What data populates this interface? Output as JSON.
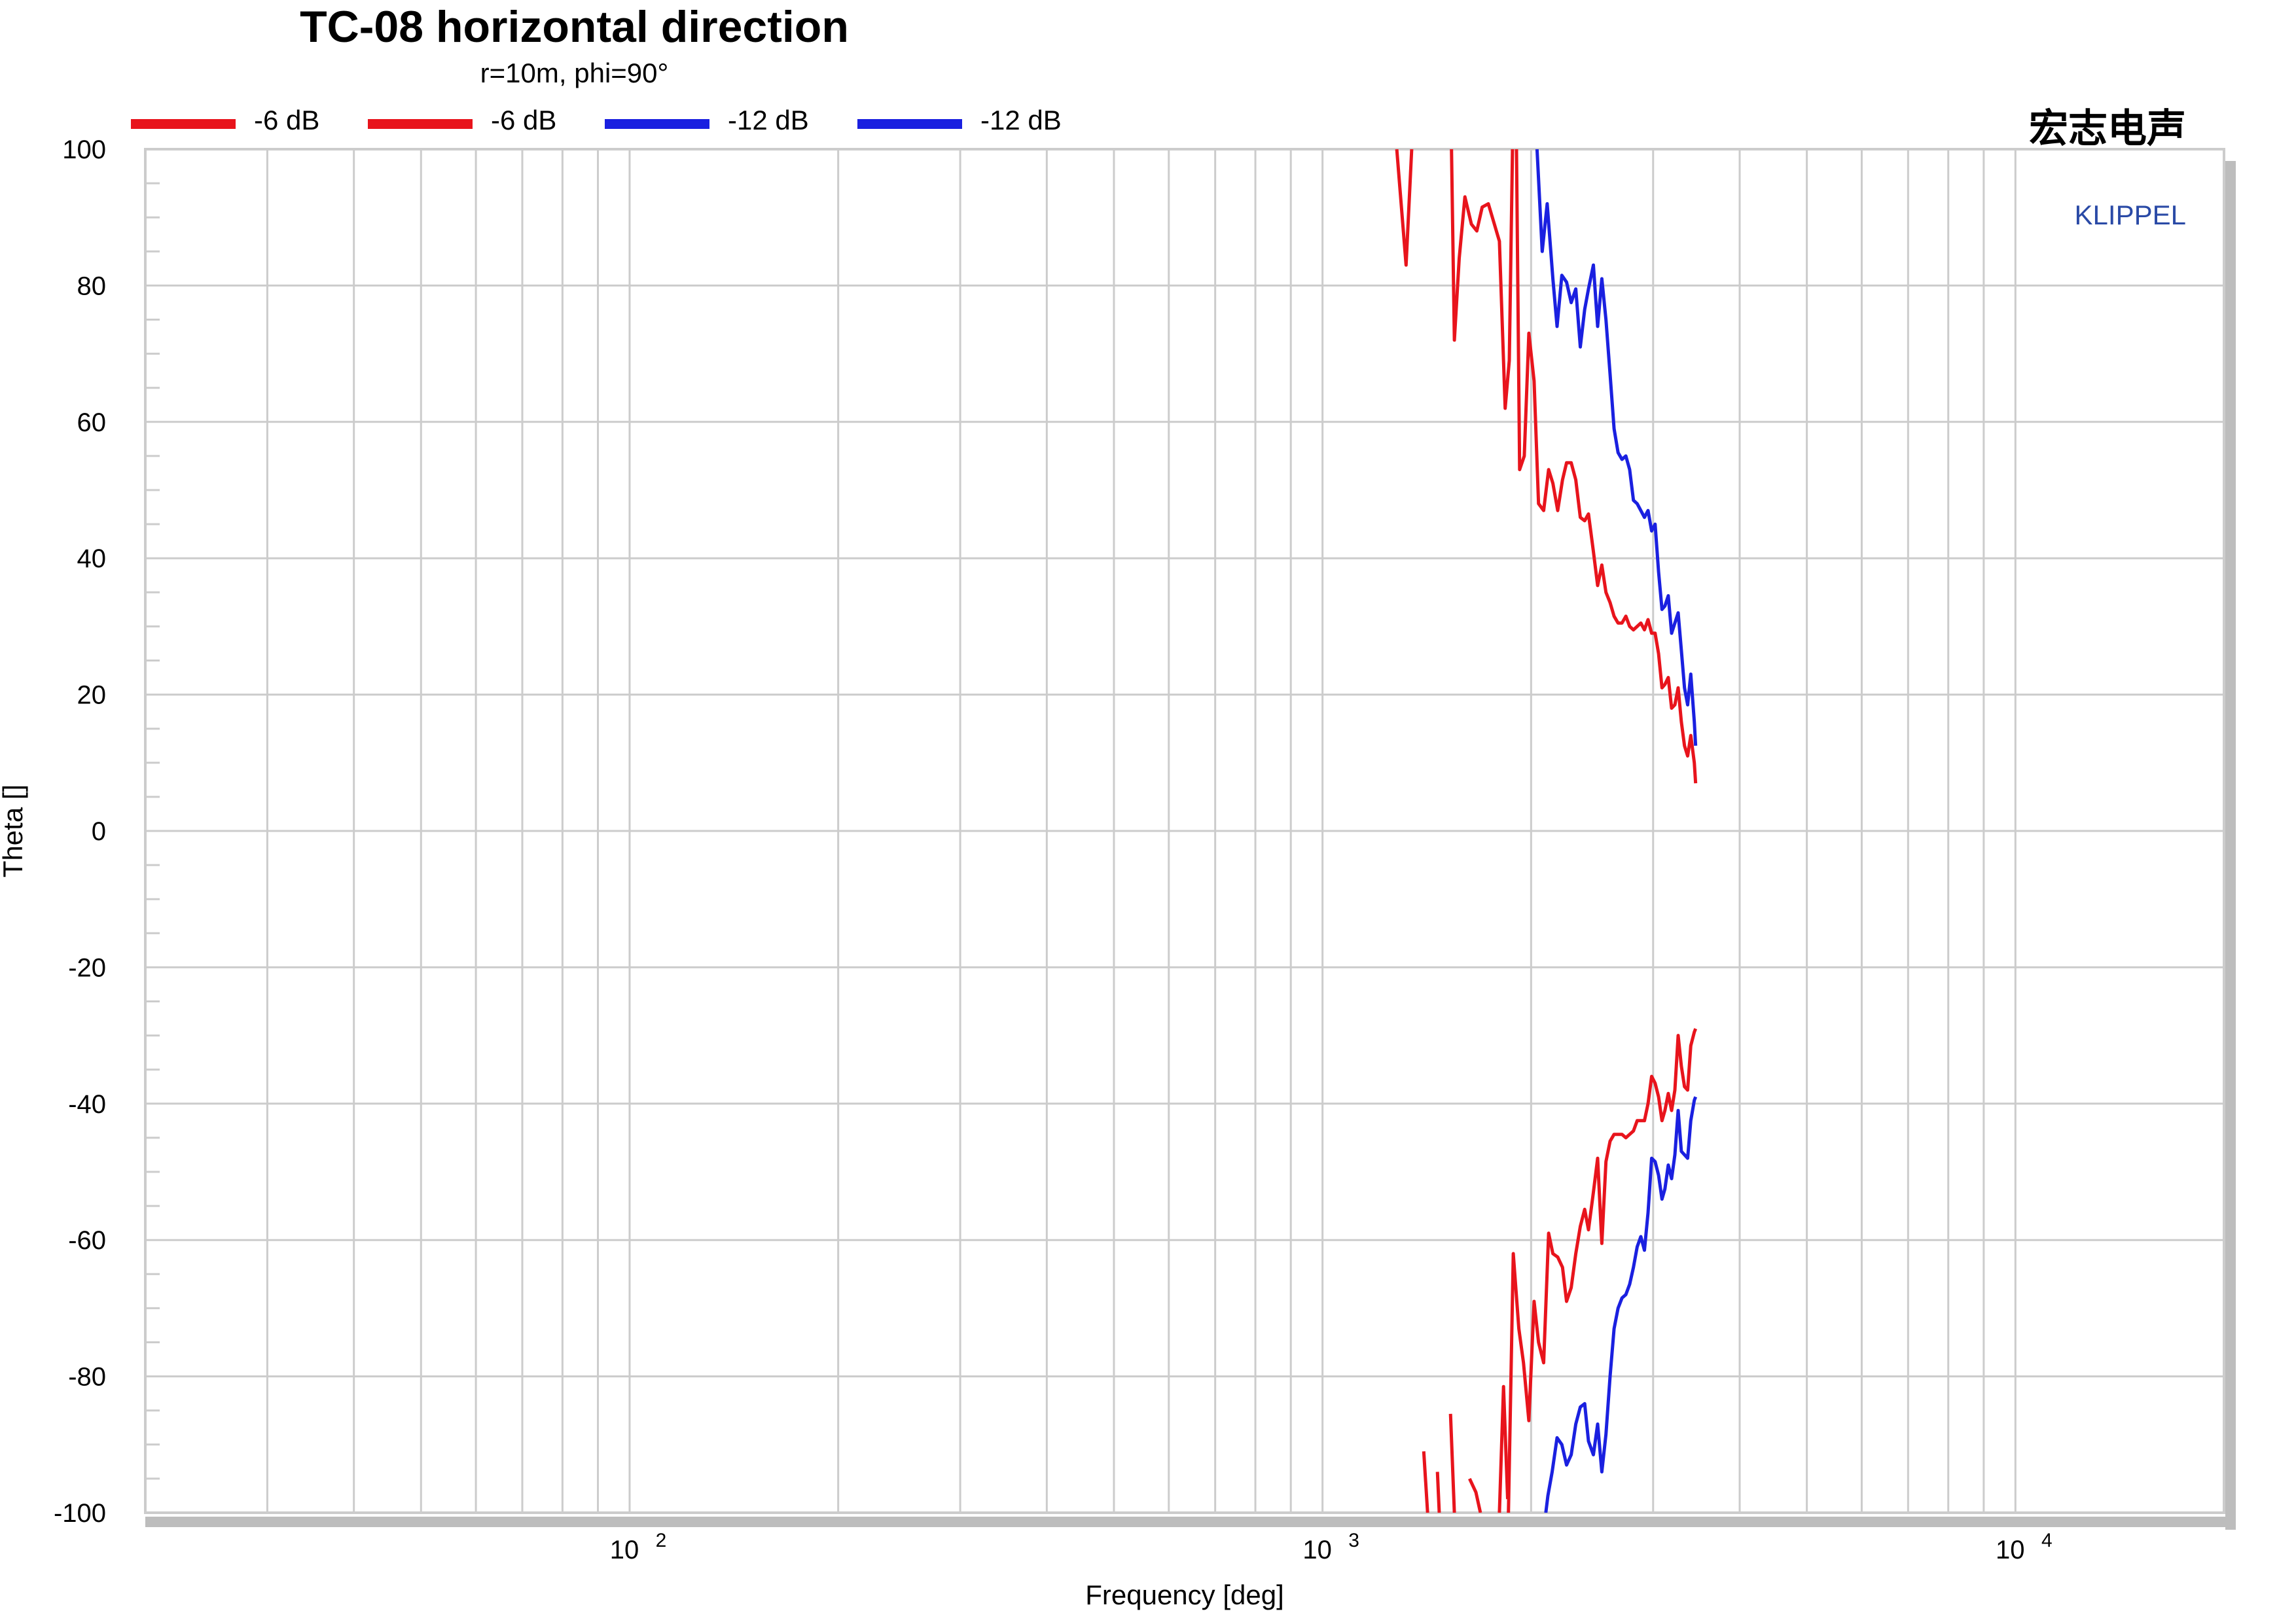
{
  "chart_data": {
    "type": "line",
    "title": "TC-08 horizontal direction",
    "subtitle": "r=10m, phi=90°",
    "xlabel": "Frequency [deg]",
    "ylabel": "Theta []",
    "xscale": "log",
    "xlim": [
      20,
      20000
    ],
    "ylim": [
      -100,
      100
    ],
    "yticks": [
      -100,
      -80,
      -60,
      -40,
      -20,
      0,
      20,
      40,
      60,
      80,
      100
    ],
    "xtick_labels": [
      {
        "base": "10",
        "exp": "2",
        "value": 100
      },
      {
        "base": "10",
        "exp": "3",
        "value": 1000
      },
      {
        "base": "10",
        "exp": "4",
        "value": 10000
      }
    ],
    "grid": true,
    "legend_position": "top",
    "brand": "宏志电声",
    "watermark": "KLIPPEL",
    "series": [
      {
        "name": "-6 dB",
        "color": "#e8141c",
        "points": [
          [
            1280,
            100
          ],
          [
            1320,
            83
          ],
          [
            1345,
            100
          ]
        ],
        "segments": [
          [
            [
              1535,
              100
            ],
            [
              1550,
              72
            ],
            [
              1575,
              84
            ],
            [
              1605,
              93
            ],
            [
              1640,
              89
            ],
            [
              1670,
              88
            ],
            [
              1700,
              91.5
            ],
            [
              1735,
              92
            ],
            [
              1770,
              89
            ],
            [
              1800,
              86.5
            ],
            [
              1835,
              62
            ],
            [
              1860,
              69
            ],
            [
              1880,
              100
            ]
          ],
          [
            [
              1905,
              100
            ],
            [
              1925,
              53
            ],
            [
              1955,
              55
            ],
            [
              1985,
              73
            ],
            [
              2020,
              66
            ],
            [
              2050,
              48
            ],
            [
              2085,
              47
            ],
            [
              2120,
              53
            ],
            [
              2150,
              51
            ],
            [
              2185,
              47
            ],
            [
              2220,
              51.5
            ],
            [
              2250,
              54
            ],
            [
              2285,
              54
            ],
            [
              2320,
              51.5
            ],
            [
              2355,
              46
            ],
            [
              2390,
              45.5
            ],
            [
              2420,
              46.5
            ],
            [
              2460,
              41
            ],
            [
              2495,
              36
            ],
            [
              2530,
              39
            ],
            [
              2565,
              35
            ],
            [
              2600,
              33.5
            ],
            [
              2635,
              31.5
            ],
            [
              2670,
              30.5
            ],
            [
              2705,
              30.5
            ],
            [
              2740,
              31.5
            ],
            [
              2775,
              30
            ],
            [
              2810,
              29.5
            ],
            [
              2845,
              30
            ],
            [
              2880,
              30.5
            ],
            [
              2915,
              29.5
            ],
            [
              2950,
              31
            ],
            [
              2985,
              29
            ],
            [
              3020,
              29
            ],
            [
              3055,
              26
            ],
            [
              3090,
              21
            ],
            [
              3120,
              21.5
            ],
            [
              3155,
              22.5
            ],
            [
              3190,
              18
            ],
            [
              3225,
              18.5
            ],
            [
              3260,
              21
            ],
            [
              3295,
              16
            ],
            [
              3330,
              12.5
            ],
            [
              3365,
              11
            ],
            [
              3400,
              14
            ],
            [
              3440,
              10
            ],
            [
              3455,
              7
            ]
          ]
        ]
      },
      {
        "name": "-6 dB",
        "color": "#e8141c",
        "segments": [
          [
            [
              1400,
              -91
            ],
            [
              1418,
              -100
            ]
          ],
          [
            [
              1465,
              -94
            ],
            [
              1474,
              -100
            ]
          ],
          [
            [
              1530,
              -85.5
            ],
            [
              1550,
              -100
            ]
          ],
          [
            [
              1630,
              -95
            ],
            [
              1665,
              -97
            ],
            [
              1690,
              -100
            ]
          ],
          [
            [
              1800,
              -100
            ],
            [
              1825,
              -81.5
            ],
            [
              1850,
              -98
            ]
          ],
          [
            [
              1855,
              -100
            ],
            [
              1885,
              -62
            ],
            [
              1920,
              -73
            ],
            [
              1950,
              -78
            ],
            [
              1985,
              -86.5
            ],
            [
              2020,
              -69
            ],
            [
              2050,
              -75
            ],
            [
              2085,
              -78
            ],
            [
              2120,
              -59
            ],
            [
              2150,
              -62
            ],
            [
              2185,
              -62.5
            ],
            [
              2220,
              -64
            ],
            [
              2250,
              -69
            ],
            [
              2285,
              -67
            ],
            [
              2320,
              -62
            ],
            [
              2355,
              -58
            ],
            [
              2390,
              -55.5
            ],
            [
              2420,
              -58.5
            ],
            [
              2460,
              -53
            ],
            [
              2495,
              -48
            ],
            [
              2530,
              -60.5
            ],
            [
              2565,
              -48.5
            ],
            [
              2600,
              -45.5
            ],
            [
              2635,
              -44.5
            ],
            [
              2670,
              -44.5
            ],
            [
              2705,
              -44.5
            ],
            [
              2740,
              -45
            ],
            [
              2775,
              -44.5
            ],
            [
              2810,
              -44
            ],
            [
              2845,
              -42.5
            ],
            [
              2880,
              -42.5
            ],
            [
              2915,
              -42.5
            ],
            [
              2950,
              -40
            ],
            [
              2985,
              -36
            ],
            [
              3020,
              -37
            ],
            [
              3055,
              -39
            ],
            [
              3090,
              -42.5
            ],
            [
              3120,
              -41
            ],
            [
              3155,
              -38.5
            ],
            [
              3190,
              -41
            ],
            [
              3225,
              -38
            ],
            [
              3260,
              -30
            ],
            [
              3295,
              -34.5
            ],
            [
              3330,
              -37.5
            ],
            [
              3365,
              -38
            ],
            [
              3400,
              -31.5
            ],
            [
              3440,
              -29.5
            ],
            [
              3455,
              -29
            ]
          ]
        ]
      },
      {
        "name": "-12 dB",
        "color": "#1a20e0",
        "segments": [
          [
            [
              2040,
              100
            ],
            [
              2075,
              85
            ],
            [
              2110,
              92
            ],
            [
              2150,
              81
            ],
            [
              2180,
              74
            ],
            [
              2215,
              81.5
            ],
            [
              2250,
              80.5
            ],
            [
              2285,
              77.5
            ],
            [
              2320,
              79.5
            ],
            [
              2355,
              71
            ],
            [
              2390,
              76.5
            ],
            [
              2420,
              79.5
            ],
            [
              2460,
              83
            ],
            [
              2495,
              74
            ],
            [
              2530,
              81
            ],
            [
              2565,
              75
            ],
            [
              2600,
              67
            ],
            [
              2635,
              59
            ],
            [
              2670,
              55.5
            ],
            [
              2705,
              54.5
            ],
            [
              2740,
              55
            ],
            [
              2775,
              53
            ],
            [
              2810,
              48.5
            ],
            [
              2845,
              48
            ],
            [
              2880,
              47
            ],
            [
              2915,
              46
            ],
            [
              2950,
              47
            ],
            [
              2985,
              44
            ],
            [
              3020,
              45
            ],
            [
              3055,
              38
            ],
            [
              3090,
              32.5
            ],
            [
              3120,
              33
            ],
            [
              3155,
              34.5
            ],
            [
              3190,
              29
            ],
            [
              3225,
              30.5
            ],
            [
              3260,
              32
            ],
            [
              3295,
              26.5
            ],
            [
              3330,
              21
            ],
            [
              3365,
              18.5
            ],
            [
              3400,
              23
            ],
            [
              3440,
              16
            ],
            [
              3455,
              12.5
            ]
          ]
        ]
      },
      {
        "name": "-12 dB",
        "color": "#1a20e0",
        "segments": [
          [
            [
              2100,
              -100
            ],
            [
              2115,
              -97.5
            ],
            [
              2145,
              -94
            ],
            [
              2180,
              -89
            ],
            [
              2215,
              -90
            ],
            [
              2250,
              -93
            ],
            [
              2285,
              -91.5
            ],
            [
              2320,
              -87
            ],
            [
              2355,
              -84.5
            ],
            [
              2390,
              -84
            ],
            [
              2420,
              -89.5
            ],
            [
              2460,
              -91.5
            ],
            [
              2495,
              -87
            ],
            [
              2530,
              -94
            ],
            [
              2565,
              -88.5
            ],
            [
              2600,
              -80
            ],
            [
              2635,
              -73
            ],
            [
              2670,
              -70
            ],
            [
              2705,
              -68.5
            ],
            [
              2740,
              -68
            ],
            [
              2775,
              -66.5
            ],
            [
              2810,
              -64
            ],
            [
              2845,
              -61
            ],
            [
              2880,
              -59.5
            ],
            [
              2915,
              -61.5
            ],
            [
              2950,
              -56
            ],
            [
              2985,
              -48
            ],
            [
              3020,
              -48.5
            ],
            [
              3055,
              -50.5
            ],
            [
              3090,
              -54
            ],
            [
              3120,
              -52.5
            ],
            [
              3155,
              -49
            ],
            [
              3190,
              -51
            ],
            [
              3225,
              -47.5
            ],
            [
              3260,
              -41
            ],
            [
              3295,
              -47
            ],
            [
              3330,
              -47.5
            ],
            [
              3365,
              -48
            ],
            [
              3400,
              -42.5
            ],
            [
              3440,
              -39.5
            ],
            [
              3455,
              -39
            ]
          ]
        ]
      }
    ]
  }
}
